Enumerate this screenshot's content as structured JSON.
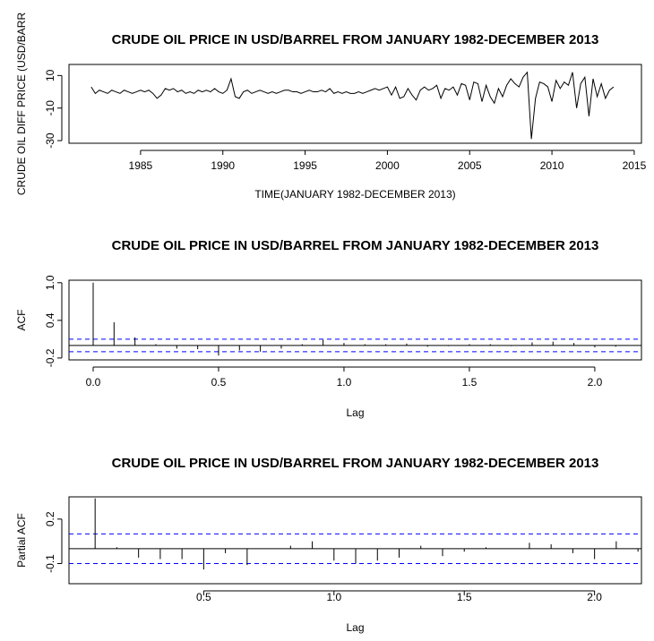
{
  "chart_data": [
    {
      "type": "line",
      "title": "CRUDE OIL PRICE IN USD/BARREL FROM JANUARY 1982-DECEMBER 2013",
      "x_label": "TIME(JANUARY 1982-DECEMBER 2013)",
      "y_label": "CRUDE OIL DIFF PRICE (USD/BARR",
      "color": "#000000",
      "x": [
        1982,
        1982.25,
        1982.5,
        1982.75,
        1983,
        1983.25,
        1983.5,
        1983.75,
        1984,
        1984.25,
        1984.5,
        1984.75,
        1985,
        1985.25,
        1985.5,
        1985.75,
        1986,
        1986.25,
        1986.5,
        1986.75,
        1987,
        1987.25,
        1987.5,
        1987.75,
        1988,
        1988.25,
        1988.5,
        1988.75,
        1989,
        1989.25,
        1989.5,
        1989.75,
        1990,
        1990.25,
        1990.5,
        1990.75,
        1991,
        1991.25,
        1991.5,
        1991.75,
        1992,
        1992.25,
        1992.5,
        1992.75,
        1993,
        1993.25,
        1993.5,
        1993.75,
        1994,
        1994.25,
        1994.5,
        1994.75,
        1995,
        1995.25,
        1995.5,
        1995.75,
        1996,
        1996.25,
        1996.5,
        1996.75,
        1997,
        1997.25,
        1997.5,
        1997.75,
        1998,
        1998.25,
        1998.5,
        1998.75,
        1999,
        1999.25,
        1999.5,
        1999.75,
        2000,
        2000.25,
        2000.5,
        2000.75,
        2001,
        2001.25,
        2001.5,
        2001.75,
        2002,
        2002.25,
        2002.5,
        2002.75,
        2003,
        2003.25,
        2003.5,
        2003.75,
        2004,
        2004.25,
        2004.5,
        2004.75,
        2005,
        2005.25,
        2005.5,
        2005.75,
        2006,
        2006.25,
        2006.5,
        2006.75,
        2007,
        2007.25,
        2007.5,
        2007.75,
        2008,
        2008.25,
        2008.5,
        2008.75,
        2009,
        2009.25,
        2009.5,
        2009.75,
        2010,
        2010.25,
        2010.5,
        2010.75,
        2011,
        2011.25,
        2011.5,
        2011.75,
        2012,
        2012.25,
        2012.5,
        2012.75,
        2013,
        2013.25,
        2013.5,
        2013.75
      ],
      "values": [
        3,
        -1,
        1,
        0,
        -1,
        1,
        0,
        -1,
        1,
        0,
        -1,
        0,
        1,
        0,
        1,
        -1,
        -4,
        -2,
        2,
        1,
        2,
        0,
        1,
        -1,
        0,
        -1,
        1,
        0,
        1,
        0,
        2,
        0,
        -1,
        1,
        8,
        -3,
        -4,
        0,
        1,
        -1,
        0,
        1,
        0,
        -1,
        0,
        -1,
        0,
        1,
        1,
        0,
        0,
        -1,
        0,
        1,
        0,
        0,
        1,
        0,
        2,
        -1,
        0,
        -1,
        0,
        -1,
        -1,
        0,
        -1,
        0,
        1,
        2,
        1,
        2,
        3,
        -2,
        3,
        -4,
        -3,
        2,
        -2,
        -5,
        1,
        3,
        1,
        2,
        4,
        -4,
        2,
        1,
        3,
        -2,
        5,
        4,
        -5,
        6,
        5,
        -6,
        4,
        -3,
        -7,
        2,
        -3,
        4,
        8,
        5,
        3,
        9,
        12,
        -29,
        -4,
        6,
        5,
        3,
        -6,
        7,
        2,
        6,
        4,
        12,
        -10,
        5,
        9,
        -15,
        8,
        -3,
        5,
        -4,
        1,
        3
      ],
      "xlim": [
        1980.65,
        2015.44
      ],
      "xticks": [
        1985,
        1990,
        1995,
        2000,
        2005,
        2010,
        2015
      ],
      "ylim": [
        -31.6,
        16.8
      ],
      "yticks": [
        -30,
        -10,
        10
      ]
    },
    {
      "type": "stem",
      "title": "CRUDE OIL PRICE IN USD/BARREL FROM JANUARY 1982-DECEMBER 2013",
      "x_label": "Lag",
      "y_label": "ACF",
      "color": "#000000",
      "ci": [
        0.1,
        -0.1
      ],
      "ci_color": "#0000ff",
      "x": [
        0,
        0.0833,
        0.1667,
        0.25,
        0.3333,
        0.4167,
        0.5,
        0.5833,
        0.6667,
        0.75,
        0.8333,
        0.9167,
        1,
        1.0833,
        1.1667,
        1.25,
        1.3333,
        1.4167,
        1.5,
        1.5833,
        1.6667,
        1.75,
        1.8333,
        1.9167,
        2,
        2.0833,
        2.1667
      ],
      "values": [
        1.0,
        0.37,
        0.13,
        0.02,
        -0.05,
        -0.06,
        -0.16,
        -0.08,
        -0.1,
        -0.05,
        0.02,
        0.09,
        0.04,
        0.02,
        0.02,
        0.03,
        -0.02,
        -0.01,
        0.02,
        0.02,
        -0.01,
        0.05,
        0.06,
        0.04,
        -0.03,
        -0.02,
        0.0
      ],
      "xlim": [
        -0.0964,
        2.186
      ],
      "xticks": [
        {
          "value": 0,
          "label": "0.0"
        },
        0.5,
        {
          "value": 1,
          "label": "1.0"
        },
        1.5,
        {
          "value": 2,
          "label": "2.0"
        }
      ],
      "ylim": [
        -0.23,
        1.04
      ],
      "yticks": [
        -0.2,
        0.4,
        {
          "value": 1,
          "label": "1.0"
        }
      ]
    },
    {
      "type": "stem",
      "title": "CRUDE OIL PRICE IN USD/BARREL FROM JANUARY 1982-DECEMBER 2013",
      "x_label": "Lag",
      "y_label": "Partial ACF",
      "color": "#000000",
      "ci": [
        0.1,
        -0.1
      ],
      "ci_color": "#0000ff",
      "x": [
        0.0833,
        0.1667,
        0.25,
        0.3333,
        0.4167,
        0.5,
        0.5833,
        0.6667,
        0.75,
        0.8333,
        0.9167,
        1,
        1.0833,
        1.1667,
        1.25,
        1.3333,
        1.4167,
        1.5,
        1.5833,
        1.6667,
        1.75,
        1.8333,
        1.9167,
        2,
        2.0833,
        2.1667
      ],
      "values": [
        0.34,
        0.01,
        -0.06,
        -0.07,
        -0.07,
        -0.14,
        -0.03,
        -0.11,
        0.0,
        0.02,
        0.05,
        -0.08,
        -0.1,
        -0.08,
        -0.06,
        0.02,
        -0.05,
        -0.02,
        0.01,
        0.0,
        0.04,
        0.03,
        -0.03,
        -0.07,
        0.05,
        -0.02
      ],
      "xlim": [
        -0.017,
        2.18
      ],
      "xticks": [
        0.5,
        {
          "value": 1,
          "label": "1.0"
        },
        1.5,
        {
          "value": 2,
          "label": "2.0"
        }
      ],
      "ylim": [
        -0.236,
        0.35
      ],
      "yticks": [
        -0.1,
        0.2
      ]
    }
  ]
}
